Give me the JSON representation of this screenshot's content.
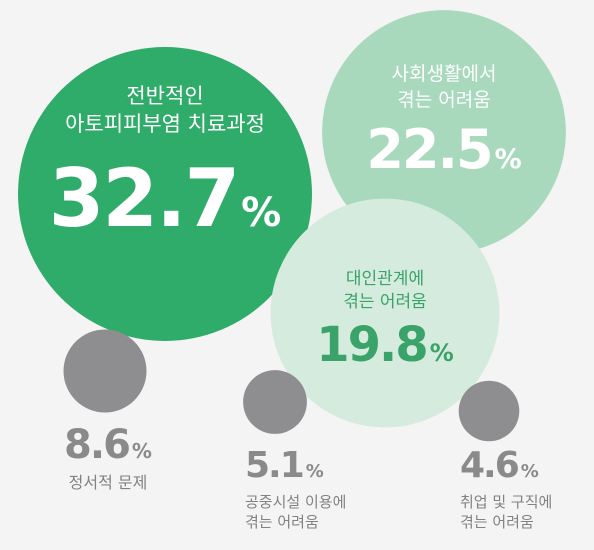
{
  "chart_data": {
    "type": "bubble",
    "items": [
      {
        "label_lines": [
          "전반적인",
          "아토피피부염 치료과정"
        ],
        "value": 32.7,
        "value_text": "32.7",
        "unit": "%",
        "color": "#2fac69",
        "text_color": "#ffffff"
      },
      {
        "label_lines": [
          "사회생활에서",
          "겪는 어려움"
        ],
        "value": 22.5,
        "value_text": "22.5",
        "unit": "%",
        "color": "#a9d9bd",
        "text_color": "#ffffff"
      },
      {
        "label_lines": [
          "대인관계에",
          "겪는 어려움"
        ],
        "value": 19.8,
        "value_text": "19.8",
        "unit": "%",
        "color": "#d5ebdd",
        "text_color": "#3aa36a"
      },
      {
        "label_lines": [
          "정서적 문제"
        ],
        "value": 8.6,
        "value_text": "8.6",
        "unit": "%",
        "color": "#8e8e91",
        "text_color": "#828282"
      },
      {
        "label_lines": [
          "공중시설 이용에",
          "겪는 어려움"
        ],
        "value": 5.1,
        "value_text": "5.1",
        "unit": "%",
        "color": "#8e8e91",
        "text_color": "#828282"
      },
      {
        "label_lines": [
          "취업 및 구직에",
          "겪는 어려움"
        ],
        "value": 4.6,
        "value_text": "4.6",
        "unit": "%",
        "color": "#8e8e91",
        "text_color": "#828282"
      }
    ]
  }
}
